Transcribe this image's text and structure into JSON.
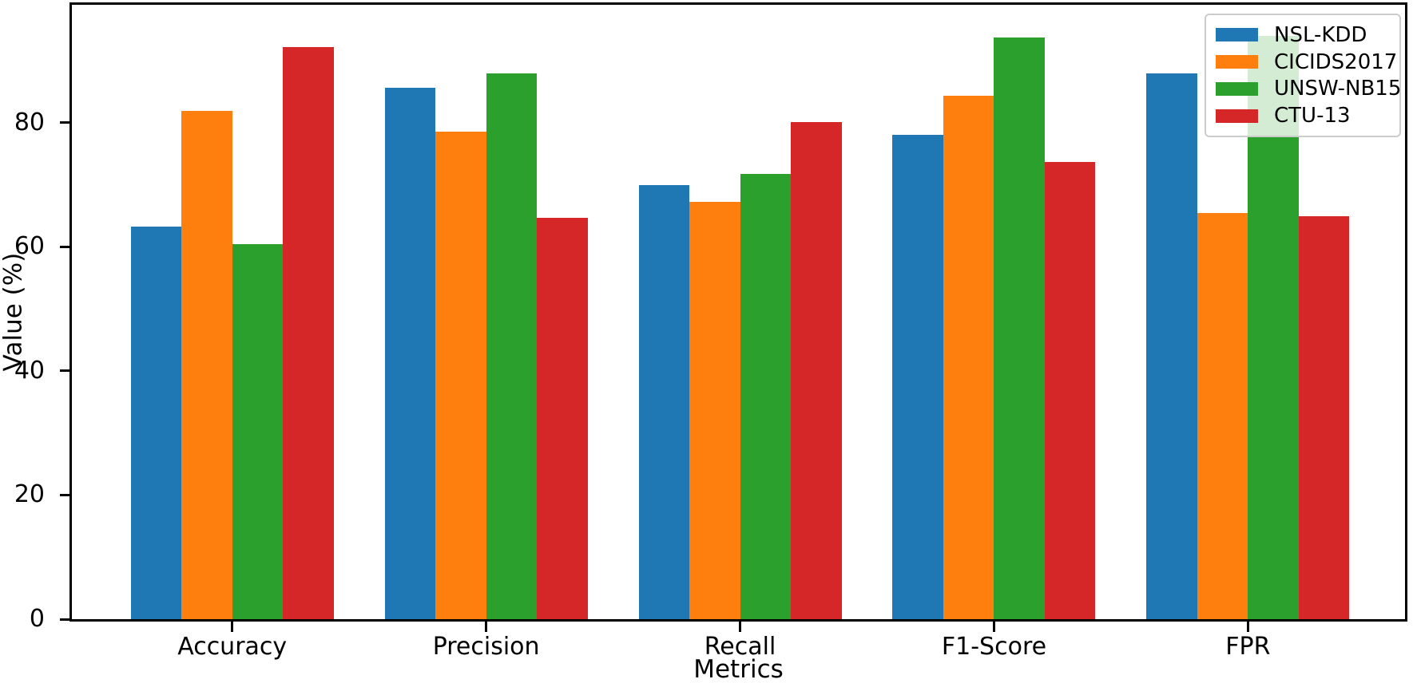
{
  "figure": {
    "background": "#ffffff",
    "axes_box": true,
    "spine_color": "#000000"
  },
  "chart_data": {
    "type": "bar",
    "title": "",
    "xlabel": "Metrics",
    "ylabel": "Value (%)",
    "categories": [
      "Accuracy",
      "Precision",
      "Recall",
      "F1-Score",
      "FPR"
    ],
    "series": [
      {
        "name": "NSL-KDD",
        "color": "#1f77b4",
        "values": [
          63.3,
          85.6,
          70.0,
          78.0,
          88.0
        ]
      },
      {
        "name": "CICIDS2017",
        "color": "#ff7f0e",
        "values": [
          81.9,
          78.6,
          67.2,
          84.4,
          65.4
        ]
      },
      {
        "name": "UNSW-NB15",
        "color": "#2ca02c",
        "values": [
          60.4,
          88.0,
          71.8,
          93.7,
          94.0
        ]
      },
      {
        "name": "CTU-13",
        "color": "#d62728",
        "values": [
          92.2,
          64.7,
          80.1,
          73.7,
          64.9
        ]
      }
    ],
    "yticks": [
      0,
      20,
      40,
      60,
      80
    ],
    "ylim": [
      0,
      99
    ],
    "grid": false,
    "legend_position": "upper right",
    "legend_frame_alpha": 0.8
  }
}
